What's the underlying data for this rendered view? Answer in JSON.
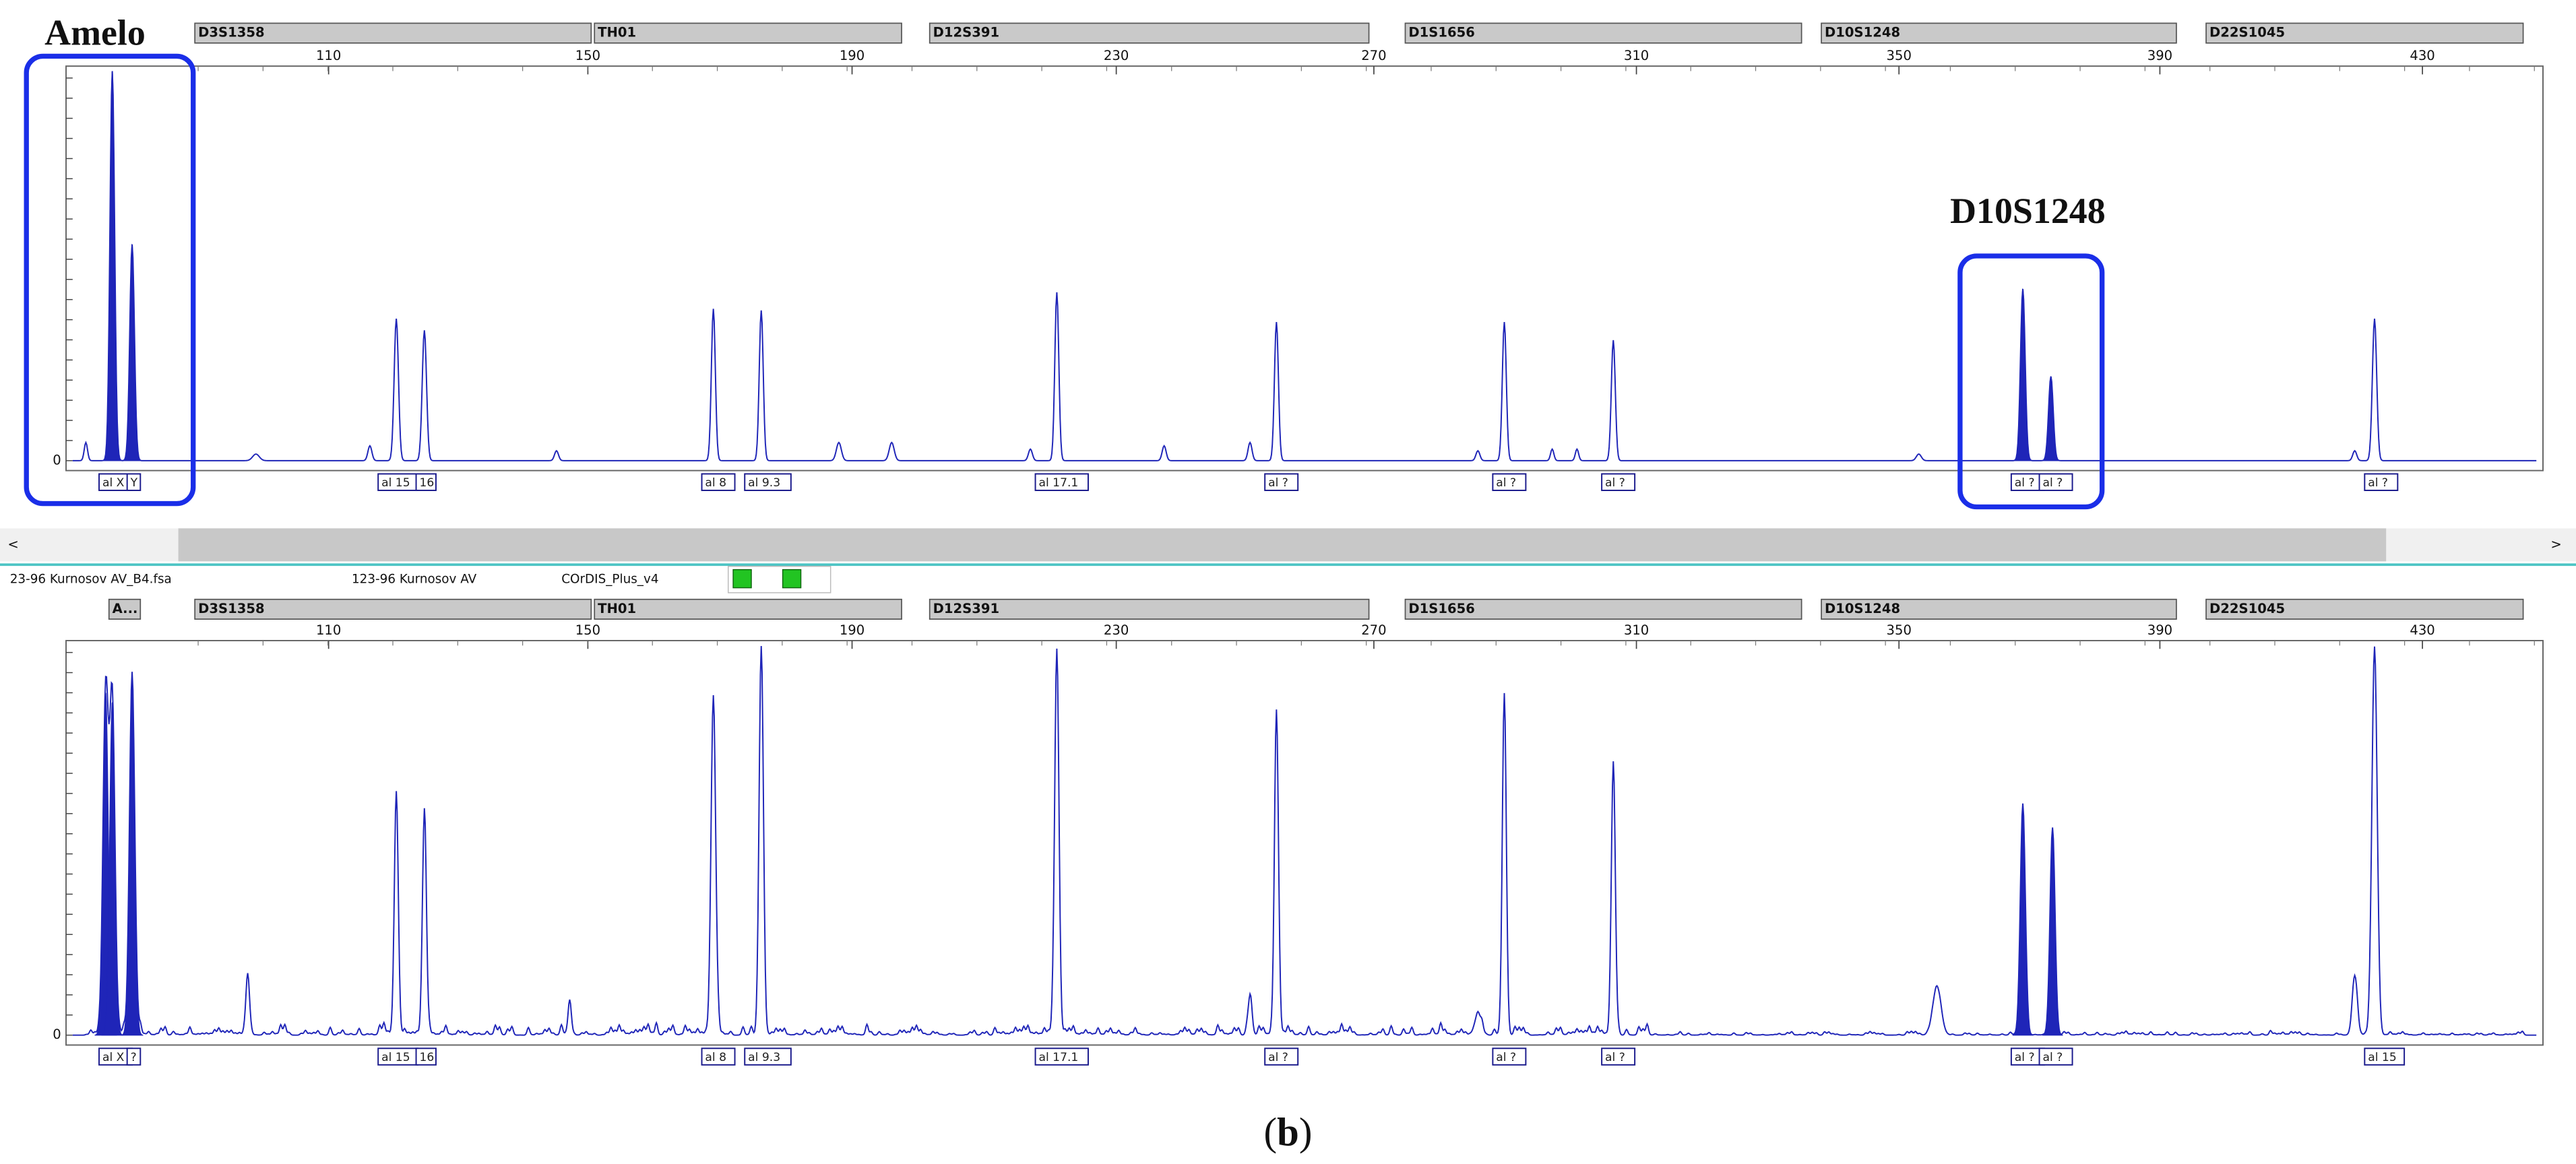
{
  "top_panel": {
    "highlight_labels": [
      "Amelo",
      "D10S1248"
    ],
    "markers": [
      "D3S1358",
      "TH01",
      "D12S391",
      "D1S1656",
      "D10S1248",
      "D22S1045"
    ],
    "scale": [
      "110",
      "150",
      "190",
      "230",
      "270",
      "310",
      "350",
      "390",
      "430"
    ],
    "baseline": "0",
    "alleles": [
      "al X",
      "Y",
      "al 15",
      "16",
      "al 8",
      "al 9.3",
      "al 17.1",
      "al ?",
      "al ?",
      "al ?",
      "al ?",
      "al ?",
      "al ?"
    ]
  },
  "scrollbar": {
    "left": "<",
    "right": ">"
  },
  "status_bar": {
    "file": "23-96 Kurnosov AV_B4.fsa",
    "sample": "123-96 Kurnosov AV",
    "panel": "COrDIS_Plus_v4"
  },
  "bottom_panel": {
    "markers": [
      "A...",
      "D3S1358",
      "TH01",
      "D12S391",
      "D1S1656",
      "D10S1248",
      "D22S1045"
    ],
    "scale": [
      "110",
      "150",
      "190",
      "230",
      "270",
      "310",
      "350",
      "390",
      "430"
    ],
    "baseline": "0",
    "alleles": [
      "al X",
      "?",
      "al 15",
      "16",
      "al 8",
      "al 9.3",
      "al 17.1",
      "al ?",
      "al ?",
      "al ?",
      "al ?",
      "al ?",
      "al 15"
    ]
  },
  "caption": {
    "open": "(",
    "letter": "b",
    "close": ")"
  }
}
